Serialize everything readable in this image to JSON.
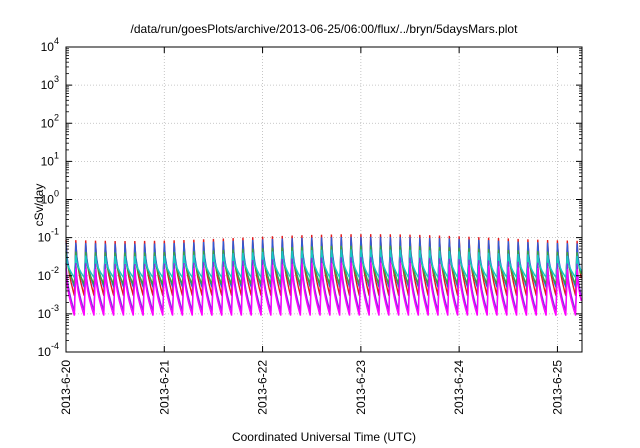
{
  "chart_data": {
    "type": "line",
    "title": "/data/run/goesPlots/archive/2013-06-25/06:00/flux/../bryn/5daysMars.plot",
    "xlabel": "Coordinated Universal Time (UTC)",
    "ylabel": "cSv/day",
    "x_ticks": [
      "2013-6-20",
      "2013-6-21",
      "2013-6-22",
      "2013-6-23",
      "2013-6-24",
      "2013-6-25"
    ],
    "xlim": [
      0,
      5.25
    ],
    "y_scale": "log",
    "ylim": [
      0.0001,
      10000
    ],
    "y_ticks": [
      {
        "base": "10",
        "exp": "-4"
      },
      {
        "base": "10",
        "exp": "-3"
      },
      {
        "base": "10",
        "exp": "-2"
      },
      {
        "base": "10",
        "exp": "-1"
      },
      {
        "base": "10",
        "exp": "0"
      },
      {
        "base": "10",
        "exp": "1"
      },
      {
        "base": "10",
        "exp": "2"
      },
      {
        "base": "10",
        "exp": "3"
      },
      {
        "base": "10",
        "exp": "4"
      }
    ],
    "grid": true,
    "cycles_per_day": 10,
    "series": [
      {
        "color": "#e41a1c",
        "peak": 0.1,
        "trough": 0.003
      },
      {
        "color": "#2f5bd6",
        "peak": 0.085,
        "trough": 0.005
      },
      {
        "color": "#3ca63c",
        "peak": 0.05,
        "trough": 0.006
      },
      {
        "color": "#17c7c7",
        "peak": 0.04,
        "trough": 0.009
      },
      {
        "color": "#8a2be2",
        "peak": 0.025,
        "trough": 0.0012
      },
      {
        "color": "#ff00ff",
        "peak": 0.018,
        "trough": 0.0009
      }
    ]
  }
}
